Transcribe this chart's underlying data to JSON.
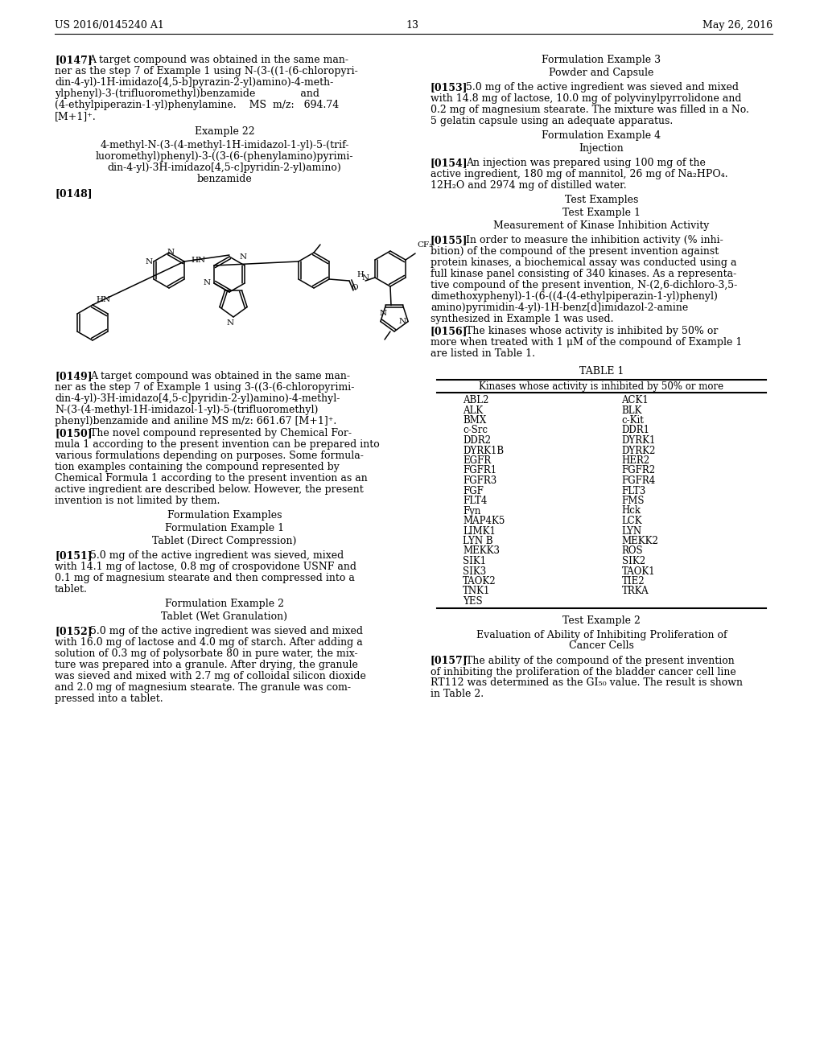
{
  "bg_color": "#ffffff",
  "header_left": "US 2016/0145240 A1",
  "header_right": "May 26, 2016",
  "page_number": "13",
  "table1_header": "Kinases whose activity is inhibited by 50% or more",
  "table1_col1": [
    "ABL2",
    "ALK",
    "BMX",
    "c-Src",
    "DDR2",
    "DYRK1B",
    "EGFR",
    "FGFR1",
    "FGFR3",
    "FGF",
    "FLT4",
    "Fyn",
    "MAP4K5",
    "LIMK1",
    "LYN B",
    "MEKK3",
    "SIK1",
    "SIK3",
    "TAOK2",
    "TNK1",
    "YES"
  ],
  "table1_col2": [
    "ACK1",
    "BLK",
    "c-Kit",
    "DDR1",
    "DYRK1",
    "DYRK2",
    "HER2",
    "FGFR2",
    "FGFR4",
    "FLT3",
    "FMS",
    "Hck",
    "LCK",
    "LYN",
    "MEKK2",
    "ROS",
    "SIK2",
    "TAOK1",
    "TIE2",
    "TRKA",
    ""
  ],
  "left_paragraphs": {
    "p0147_tag": "[0147]",
    "p0147_text": "A target compound was obtained in the same manner as the step 7 of Example 1 using N-(3-((1-(6-chloropyridin-4-yl)-1H-imidazo[4,5-b]pyrazin-2-yl)amino)-4-methylphenyl)-3-(trifluoromethyl)benzamide                 and (4-ethylpiperazin-1-yl)phenylamine.    MS  m/z:   694.74 [M+1]⁺.",
    "example22_title": "Example 22",
    "example22_name_lines": [
      "4-methyl-N-(3-(4-methyl-1H-imidazol-1-yl)-5-(trif-",
      "luoromethyl)phenyl)-3-((3-(6-(phenylamino)pyrimi-",
      "din-4-yl)-3H-imidazo[4,5-c]pyridin-2-yl)amino)",
      "benzamide"
    ],
    "p0148_tag": "[0148]",
    "p0149_tag": "[0149]",
    "p0149_text": "A target compound was obtained in the same manner as the step 7 of Example 1 using 3-((3-(6-chloropyrimidin-4-yl)-3H-imidazo[4,5-c]pyridin-2-yl)amino)-4-methyl-N-(3-(4-methyl-1H-imidazol-1-yl)-5-(trifluoromethyl)phenyl)benzamide and aniline MS m/z: 661.67 [M+1]⁺.",
    "p0149_lines": [
      "A target compound was obtained in the same man-",
      "ner as the step 7 of Example 1 using 3-((3-(6-chloropyrimi-",
      "din-4-yl)-3H-imidazo[4,5-c]pyridin-2-yl)amino)-4-methyl-",
      "N-(3-(4-methyl-1H-imidazol-1-yl)-5-(trifluoromethyl)",
      "phenyl)benzamide and aniline MS m/z: 661.67 [M+1]⁺."
    ],
    "p0150_tag": "[0150]",
    "p0150_lines": [
      "The novel compound represented by Chemical For-",
      "mula 1 according to the present invention can be prepared into",
      "various formulations depending on purposes. Some formula-",
      "tion examples containing the compound represented by",
      "Chemical Formula 1 according to the present invention as an",
      "active ingredient are described below. However, the present",
      "invention is not limited by them."
    ],
    "form_examples": "Formulation Examples",
    "form_ex1": "Formulation Example 1",
    "form_tablet_dc": "Tablet (Direct Compression)",
    "p0151_tag": "[0151]",
    "p0151_lines": [
      "5.0 mg of the active ingredient was sieved, mixed",
      "with 14.1 mg of lactose, 0.8 mg of crospovidone USNF and",
      "0.1 mg of magnesium stearate and then compressed into a",
      "tablet."
    ],
    "form_ex2": "Formulation Example 2",
    "form_tablet_wg": "Tablet (Wet Granulation)",
    "p0152_tag": "[0152]",
    "p0152_lines": [
      "5.0 mg of the active ingredient was sieved and mixed",
      "with 16.0 mg of lactose and 4.0 mg of starch. After adding a",
      "solution of 0.3 mg of polysorbate 80 in pure water, the mix-",
      "ture was prepared into a granule. After drying, the granule",
      "was sieved and mixed with 2.7 mg of colloidal silicon dioxide",
      "and 2.0 mg of magnesium stearate. The granule was com-",
      "pressed into a tablet."
    ]
  },
  "right_paragraphs": {
    "form_ex3": "Formulation Example 3",
    "form_powder": "Powder and Capsule",
    "p0153_tag": "[0153]",
    "p0153_lines": [
      "5.0 mg of the active ingredient was sieved and mixed",
      "with 14.8 mg of lactose, 10.0 mg of polyvinylpyrrolidone and",
      "0.2 mg of magnesium stearate. The mixture was filled in a No.",
      "5 gelatin capsule using an adequate apparatus."
    ],
    "form_ex4": "Formulation Example 4",
    "form_injection": "Injection",
    "p0154_tag": "[0154]",
    "p0154_lines": [
      "An injection was prepared using 100 mg of the",
      "active ingredient, 180 mg of mannitol, 26 mg of Na₂HPO₄.",
      "12H₂O and 2974 mg of distilled water."
    ],
    "test_examples": "Test Examples",
    "test_ex1": "Test Example 1",
    "test_ex1_title": "Measurement of Kinase Inhibition Activity",
    "p0155_tag": "[0155]",
    "p0155_lines": [
      "In order to measure the inhibition activity (% inhi-",
      "bition) of the compound of the present invention against",
      "protein kinases, a biochemical assay was conducted using a",
      "full kinase panel consisting of 340 kinases. As a representa-",
      "tive compound of the present invention, N-(2,6-dichloro-3,5-",
      "dimethoxyphenyl)-1-(6-((4-(4-ethylpiperazin-1-yl)phenyl)",
      "amino)pyrimidin-4-yl)-1H-benz[d]imidazol-2-amine",
      "synthesized in Example 1 was used."
    ],
    "p0156_tag": "[0156]",
    "p0156_lines": [
      "The kinases whose activity is inhibited by 50% or",
      "more when treated with 1 μM of the compound of Example 1",
      "are listed in Table 1."
    ],
    "table1_title": "TABLE 1",
    "test_ex2": "Test Example 2",
    "test_ex2_title_lines": [
      "Evaluation of Ability of Inhibiting Proliferation of",
      "Cancer Cells"
    ],
    "p0157_tag": "[0157]",
    "p0157_lines": [
      "The ability of the compound of the present invention",
      "of inhibiting the proliferation of the bladder cancer cell line",
      "RT112 was determined as the GI₅₀ value. The result is shown",
      "in Table 2."
    ]
  }
}
